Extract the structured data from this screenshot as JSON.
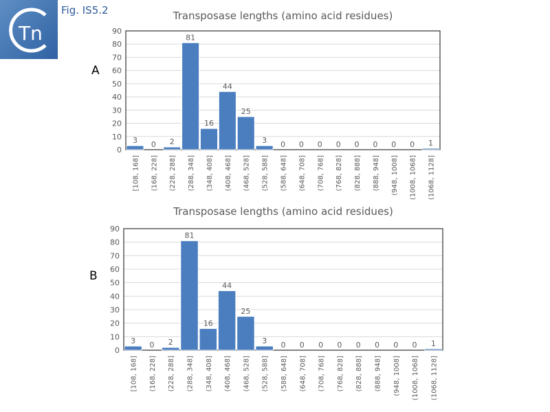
{
  "figure_label": "Fig. IS5.2",
  "logo_text": "Tn",
  "colors": {
    "bar": "#4a7ebf",
    "grid": "#d9d9d9",
    "label": "#595959",
    "figure_label": "#2e5c9a"
  },
  "chart_data": [
    {
      "panel": "A",
      "type": "bar",
      "title": "Transposase lengths (amino acid residues)",
      "categories": [
        "[108, 168]",
        "(168, 228]",
        "(228, 288]",
        "(288, 348]",
        "(348, 408]",
        "(408, 468]",
        "(468, 528]",
        "(528, 588]",
        "(588, 648]",
        "(648, 708]",
        "(708, 768]",
        "(768, 828]",
        "(828, 888]",
        "(888, 948]",
        "(948, 1008]",
        "(1008, 1068]",
        "(1068, 1128]"
      ],
      "values": [
        3,
        0,
        2,
        81,
        16,
        44,
        25,
        3,
        0,
        0,
        0,
        0,
        0,
        0,
        0,
        0,
        1
      ],
      "yticks": [
        "0",
        "10",
        "20",
        "30",
        "40",
        "50",
        "60",
        "70",
        "80",
        "90"
      ],
      "ylim": [
        0,
        90
      ],
      "grid": true
    },
    {
      "panel": "B",
      "type": "bar",
      "title": "Transposase lengths (amino acid residues)",
      "categories": [
        "[108, 168]",
        "(168, 228]",
        "(228, 288]",
        "(288, 348]",
        "(348, 408]",
        "(408, 468]",
        "(468, 528]",
        "(528, 588]",
        "(588, 648]",
        "(648, 708]",
        "(708, 768]",
        "(768, 828]",
        "(828, 888]",
        "(888, 948]",
        "(948, 1008]",
        "(1008, 1068]",
        "(1068, 1128]"
      ],
      "values": [
        3,
        0,
        2,
        81,
        16,
        44,
        25,
        3,
        0,
        0,
        0,
        0,
        0,
        0,
        0,
        0,
        1
      ],
      "yticks": [
        "0",
        "10",
        "20",
        "30",
        "40",
        "50",
        "60",
        "70",
        "80",
        "90"
      ],
      "ylim": [
        0,
        90
      ],
      "grid": true
    }
  ]
}
